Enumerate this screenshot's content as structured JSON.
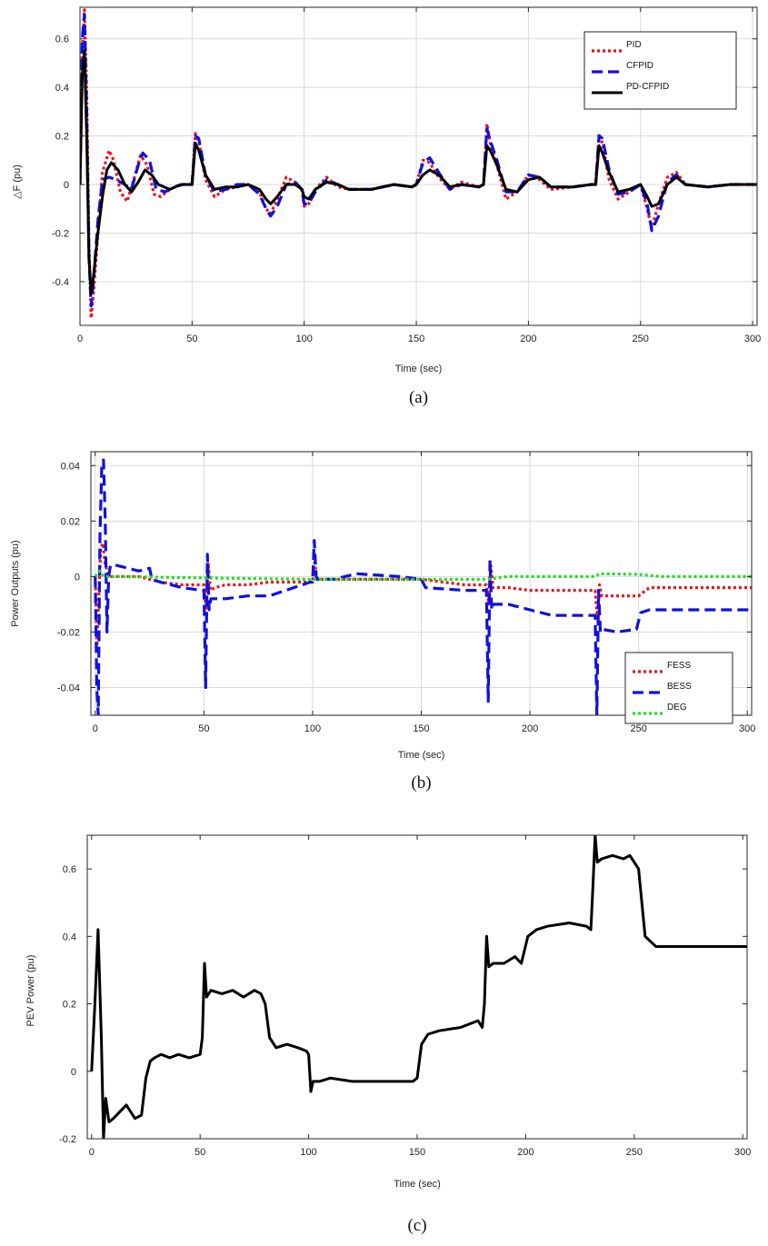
{
  "chart_data": [
    {
      "type": "line",
      "caption": "(a)",
      "xlabel": "Time (sec)",
      "ylabel": "△F (pu)",
      "xlim": [
        0,
        302
      ],
      "ylim": [
        -0.58,
        0.73
      ],
      "xticks": [
        0,
        50,
        100,
        150,
        200,
        250,
        300
      ],
      "yticks": [
        -0.4,
        -0.2,
        0,
        0.2,
        0.4,
        0.6
      ],
      "ytick_labels": [
        "-0.4",
        "-0.2",
        "0",
        "0.2",
        "0.4",
        "0.6"
      ],
      "grid": true,
      "legend_position": "top-right",
      "series": [
        {
          "name": "PID",
          "color": "#e8141b",
          "style": "dotted",
          "x": [
            0,
            1,
            2,
            3,
            4,
            5,
            6,
            8,
            10,
            13,
            15,
            18,
            21,
            24,
            27,
            30,
            33,
            36,
            40,
            45,
            49,
            50,
            51.5,
            53,
            56,
            60,
            65,
            70,
            75,
            80,
            83,
            85,
            88,
            92,
            96,
            99,
            100,
            102,
            105,
            110,
            115,
            120,
            130,
            140,
            148,
            150,
            153,
            156,
            160,
            165,
            170,
            178,
            180,
            181.5,
            183,
            186,
            190,
            195,
            200,
            205,
            210,
            220,
            228,
            230,
            231.5,
            233,
            236,
            240,
            245,
            250,
            253,
            255,
            258,
            262,
            266,
            270,
            280,
            290,
            302
          ],
          "y": [
            0,
            0.55,
            0.72,
            0.38,
            -0.25,
            -0.55,
            -0.45,
            -0.2,
            0.05,
            0.14,
            0.1,
            -0.03,
            -0.07,
            0.02,
            0.12,
            0.08,
            -0.04,
            -0.05,
            -0.02,
            0,
            0,
            0,
            0.21,
            0.18,
            0.02,
            -0.05,
            -0.02,
            -0.01,
            0,
            -0.03,
            -0.1,
            -0.12,
            -0.06,
            0.03,
            0.01,
            -0.02,
            -0.09,
            -0.08,
            -0.02,
            0.03,
            -0.01,
            -0.02,
            -0.02,
            0,
            -0.01,
            0,
            0.1,
            0.09,
            0.03,
            -0.02,
            0.01,
            -0.01,
            0,
            0.25,
            0.17,
            0.08,
            -0.06,
            -0.03,
            0.04,
            0.02,
            -0.02,
            -0.01,
            0,
            0,
            0.21,
            0.17,
            0.02,
            -0.06,
            -0.03,
            0,
            -0.1,
            -0.18,
            -0.08,
            0.03,
            0.05,
            0,
            -0.01,
            0,
            0
          ]
        },
        {
          "name": "CFPID",
          "color": "#1010e0",
          "style": "dashed",
          "x": [
            0,
            1,
            2,
            3,
            4,
            5,
            6,
            8,
            10,
            13,
            16,
            20,
            23,
            26,
            28,
            31,
            34,
            38,
            42,
            46,
            49,
            50,
            51.5,
            53,
            56,
            60,
            65,
            70,
            75,
            80,
            83,
            85,
            88,
            92,
            96,
            99,
            100,
            102,
            105,
            110,
            115,
            120,
            130,
            140,
            148,
            150,
            153,
            156,
            160,
            165,
            170,
            178,
            180,
            181.5,
            183,
            186,
            190,
            195,
            200,
            205,
            210,
            220,
            228,
            230,
            231.5,
            233,
            236,
            240,
            245,
            250,
            253,
            255,
            258,
            262,
            266,
            270,
            280,
            290,
            302
          ],
          "y": [
            0,
            0.6,
            0.7,
            0.3,
            -0.3,
            -0.5,
            -0.4,
            -0.15,
            0.02,
            0.03,
            0.02,
            0,
            -0.02,
            0.08,
            0.13,
            0.1,
            -0.02,
            -0.03,
            -0.01,
            0,
            0,
            0,
            0.2,
            0.19,
            0.04,
            -0.03,
            -0.02,
            0,
            0,
            -0.04,
            -0.1,
            -0.13,
            -0.09,
            0,
            0.01,
            -0.02,
            -0.08,
            -0.08,
            -0.03,
            0.02,
            0,
            -0.02,
            -0.02,
            0,
            -0.01,
            0,
            0.09,
            0.11,
            0.05,
            -0.02,
            0,
            -0.01,
            0,
            0.23,
            0.18,
            0.1,
            -0.03,
            -0.03,
            0.04,
            0.03,
            -0.01,
            -0.01,
            0,
            0,
            0.2,
            0.19,
            0.06,
            -0.04,
            -0.03,
            0,
            -0.08,
            -0.19,
            -0.13,
            0.01,
            0.04,
            0,
            -0.01,
            0,
            0
          ]
        },
        {
          "name": "PD-CFPID",
          "color": "#000000",
          "style": "solid",
          "x": [
            0,
            1,
            2,
            3,
            4,
            5,
            6,
            8,
            10,
            12,
            14,
            17,
            20,
            23,
            26,
            29,
            32,
            35,
            40,
            45,
            49,
            50,
            51.5,
            53,
            56,
            60,
            65,
            70,
            75,
            80,
            83,
            85,
            88,
            92,
            96,
            99,
            100,
            102,
            105,
            110,
            115,
            120,
            130,
            140,
            148,
            150,
            153,
            156,
            160,
            165,
            170,
            178,
            180,
            181.5,
            183,
            186,
            190,
            195,
            200,
            205,
            210,
            220,
            228,
            230,
            231.5,
            233,
            236,
            240,
            245,
            250,
            253,
            255,
            258,
            262,
            266,
            270,
            280,
            290,
            302
          ],
          "y": [
            0,
            0.45,
            0.55,
            0.2,
            -0.3,
            -0.45,
            -0.38,
            -0.2,
            -0.05,
            0.06,
            0.09,
            0.06,
            0,
            -0.03,
            0.01,
            0.06,
            0.04,
            0,
            -0.02,
            0,
            0,
            0,
            0.17,
            0.14,
            0.04,
            -0.02,
            -0.01,
            -0.01,
            0,
            -0.02,
            -0.06,
            -0.08,
            -0.05,
            0,
            0,
            -0.02,
            -0.05,
            -0.06,
            -0.02,
            0.01,
            0,
            -0.02,
            -0.02,
            0,
            -0.01,
            0,
            0.04,
            0.06,
            0.04,
            -0.01,
            0,
            -0.01,
            0,
            0.16,
            0.14,
            0.08,
            -0.02,
            -0.03,
            0.02,
            0.03,
            -0.01,
            -0.01,
            0,
            0,
            0.16,
            0.13,
            0.05,
            -0.03,
            -0.02,
            0,
            -0.05,
            -0.09,
            -0.08,
            0,
            0.03,
            0,
            -0.01,
            0,
            0
          ]
        }
      ]
    },
    {
      "type": "line",
      "caption": "(b)",
      "xlabel": "Time (sec)",
      "ylabel": "Power Outputs (pu)",
      "xlim": [
        -2,
        302
      ],
      "ylim": [
        -0.05,
        0.045
      ],
      "xticks": [
        0,
        50,
        100,
        150,
        200,
        250,
        300
      ],
      "yticks": [
        -0.04,
        -0.02,
        0,
        0.02,
        0.04
      ],
      "ytick_labels": [
        "-0.04",
        "-0.02",
        "0",
        "0.02",
        "0.04"
      ],
      "grid": true,
      "legend_position": "bottom-right",
      "series": [
        {
          "name": "FESS",
          "color": "#e8141b",
          "style": "dotted",
          "x": [
            0,
            0.8,
            1.5,
            2.5,
            3.5,
            4.5,
            5.5,
            7,
            10,
            20,
            25,
            30,
            40,
            49,
            50,
            51,
            52,
            53,
            55,
            60,
            70,
            80,
            99,
            100,
            101,
            102,
            110,
            120,
            140,
            150,
            170,
            180,
            181,
            182,
            183,
            190,
            200,
            220,
            230,
            231,
            232,
            233,
            240,
            250,
            255,
            270,
            302
          ],
          "y": [
            0,
            -0.025,
            -0.01,
            0.01,
            0.012,
            0.005,
            0.002,
            0,
            0,
            0,
            -0.001,
            -0.002,
            -0.003,
            -0.003,
            -0.003,
            -0.012,
            0.005,
            -0.005,
            -0.004,
            -0.003,
            -0.003,
            -0.002,
            -0.002,
            -0.002,
            0.005,
            -0.001,
            -0.001,
            -0.001,
            -0.001,
            -0.001,
            -0.003,
            -0.003,
            -0.01,
            0.004,
            -0.004,
            -0.004,
            -0.005,
            -0.005,
            -0.005,
            -0.015,
            -0.003,
            -0.007,
            -0.007,
            -0.007,
            -0.004,
            -0.004,
            -0.004
          ]
        },
        {
          "name": "BESS",
          "color": "#1010e0",
          "style": "dashed",
          "x": [
            0,
            0.7,
            1.4,
            2.2,
            3,
            3.8,
            4.6,
            5.4,
            6.2,
            7,
            10,
            15,
            20,
            25,
            26,
            30,
            40,
            49,
            50,
            50.8,
            51.6,
            52.4,
            53.2,
            55,
            60,
            70,
            80,
            99,
            100,
            100.8,
            101.6,
            102.5,
            110,
            120,
            140,
            150,
            152,
            170,
            180,
            180.8,
            181.6,
            182.4,
            183.2,
            190,
            200,
            210,
            230,
            230.8,
            231.6,
            232.4,
            233.2,
            240,
            249,
            251,
            255,
            270,
            302
          ],
          "y": [
            0,
            -0.04,
            -0.05,
            0.015,
            0.04,
            0.042,
            0.02,
            -0.02,
            0,
            0.004,
            0.004,
            0.003,
            0.002,
            0.003,
            -0.001,
            -0.002,
            -0.004,
            -0.005,
            -0.005,
            -0.04,
            0.008,
            -0.012,
            -0.008,
            -0.008,
            -0.008,
            -0.007,
            -0.007,
            -0.002,
            -0.002,
            0.013,
            0,
            -0.001,
            -0.001,
            0.001,
            0,
            -0.001,
            -0.004,
            -0.005,
            -0.005,
            -0.045,
            0.006,
            -0.012,
            -0.01,
            -0.01,
            -0.012,
            -0.014,
            -0.014,
            -0.05,
            -0.005,
            -0.02,
            -0.019,
            -0.02,
            -0.019,
            -0.013,
            -0.012,
            -0.012,
            -0.012
          ]
        },
        {
          "name": "DEG",
          "color": "#22dd22",
          "style": "dotted",
          "x": [
            0,
            2,
            4,
            10,
            50,
            100,
            150,
            180,
            190,
            200,
            230,
            232,
            250,
            260,
            302
          ],
          "y": [
            0,
            0.002,
            0,
            0,
            -0.0005,
            -0.001,
            -0.001,
            -0.001,
            0,
            0,
            0,
            0.001,
            0.0008,
            0,
            0
          ]
        }
      ]
    },
    {
      "type": "line",
      "caption": "(c)",
      "xlabel": "Time (sec)",
      "ylabel": "PEV Power (pu)",
      "xlim": [
        -2,
        302
      ],
      "ylim": [
        -0.2,
        0.7
      ],
      "xticks": [
        0,
        50,
        100,
        150,
        200,
        250,
        300
      ],
      "yticks": [
        -0.2,
        0,
        0.2,
        0.4,
        0.6
      ],
      "ytick_labels": [
        "-0.2",
        "0",
        "0.2",
        "0.4",
        "0.6"
      ],
      "grid": false,
      "series": [
        {
          "name": "",
          "color": "#000000",
          "style": "solid",
          "x": [
            0,
            1.5,
            3,
            4.5,
            5.5,
            6.5,
            8,
            10,
            13,
            16,
            20,
            23,
            25,
            27,
            29,
            32,
            36,
            40,
            45,
            50,
            51,
            52,
            53,
            55,
            60,
            65,
            70,
            75,
            78,
            80,
            82,
            85,
            90,
            95,
            99,
            100,
            101,
            102,
            105,
            110,
            120,
            130,
            140,
            148,
            150,
            152,
            155,
            160,
            170,
            178,
            180,
            181,
            182,
            183,
            185,
            190,
            195,
            198,
            201,
            205,
            210,
            220,
            228,
            230,
            231,
            232,
            233,
            235,
            240,
            245,
            248,
            250,
            252,
            255,
            260,
            270,
            280,
            290,
            302
          ],
          "y": [
            0,
            0.2,
            0.42,
            0.1,
            -0.2,
            -0.08,
            -0.15,
            -0.14,
            -0.12,
            -0.1,
            -0.14,
            -0.13,
            -0.02,
            0.03,
            0.04,
            0.05,
            0.04,
            0.05,
            0.04,
            0.05,
            0.1,
            0.32,
            0.22,
            0.24,
            0.23,
            0.24,
            0.22,
            0.24,
            0.23,
            0.2,
            0.1,
            0.07,
            0.08,
            0.07,
            0.06,
            0.05,
            -0.06,
            -0.03,
            -0.03,
            -0.02,
            -0.03,
            -0.03,
            -0.03,
            -0.03,
            -0.02,
            0.08,
            0.11,
            0.12,
            0.13,
            0.15,
            0.13,
            0.2,
            0.4,
            0.31,
            0.32,
            0.32,
            0.34,
            0.32,
            0.4,
            0.42,
            0.43,
            0.44,
            0.43,
            0.42,
            0.55,
            0.7,
            0.62,
            0.63,
            0.64,
            0.63,
            0.64,
            0.62,
            0.6,
            0.4,
            0.37,
            0.37,
            0.37,
            0.37,
            0.37
          ]
        }
      ]
    }
  ]
}
